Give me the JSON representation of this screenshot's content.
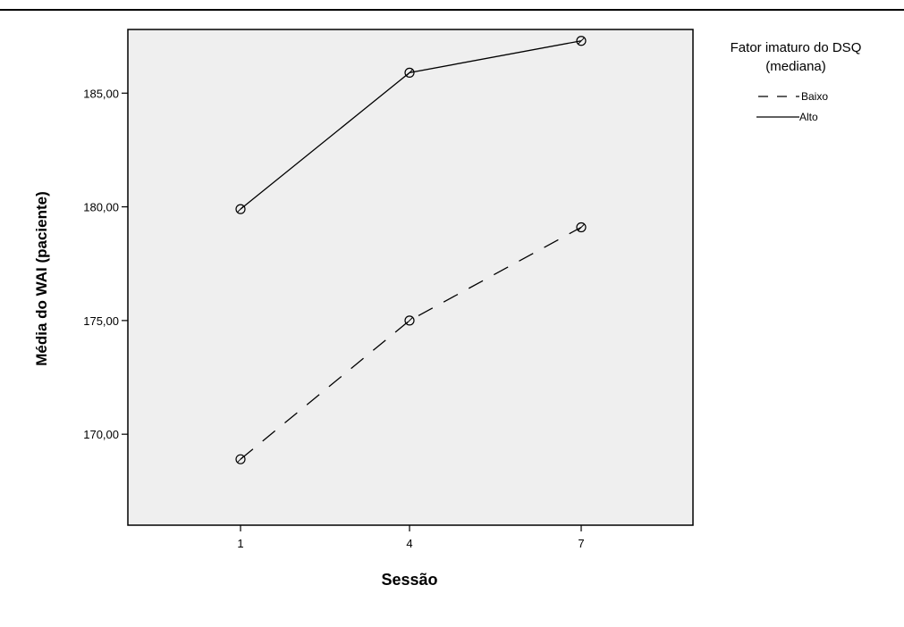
{
  "chart_data": {
    "type": "line",
    "title": "",
    "xlabel": "Sessão",
    "ylabel": "Média do WAI (paciente)",
    "categories": [
      "1",
      "4",
      "7"
    ],
    "ylim": [
      166.0,
      187.8
    ],
    "yticks": [
      170,
      175,
      180,
      185
    ],
    "ytick_labels": [
      "170,00",
      "175,00",
      "180,00",
      "185,00"
    ],
    "grid": false,
    "legend": {
      "title_line1": "Fator imaturo do DSQ",
      "title_line2": "(mediana)",
      "placement": "right"
    },
    "series": [
      {
        "name": "Baixo",
        "style": "dashed",
        "values": [
          168.9,
          175.0,
          179.1
        ]
      },
      {
        "name": "Alto",
        "style": "solid",
        "values": [
          179.9,
          185.9,
          187.3
        ]
      }
    ],
    "colors": {
      "plot_background": "#efefef",
      "line": "#000000"
    }
  }
}
